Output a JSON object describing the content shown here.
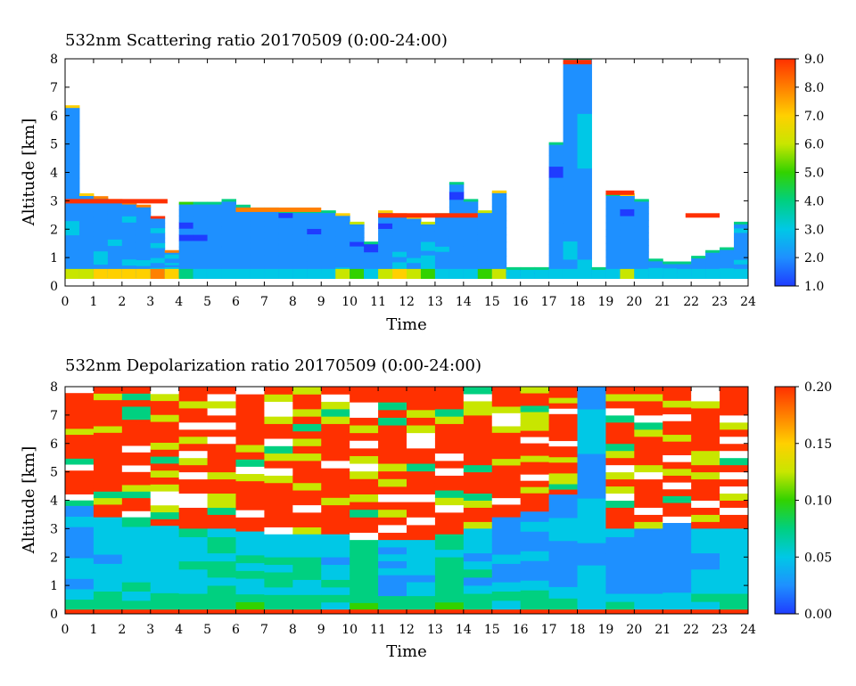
{
  "colorscale": [
    "#1f3cff",
    "#1e90ff",
    "#00c8e6",
    "#00d080",
    "#32d200",
    "#c8e600",
    "#ffd000",
    "#ff8000",
    "#ff3000"
  ],
  "chart_data": [
    {
      "type": "heatmap",
      "title": "532nm Scattering ratio  20170509 (0:00-24:00)",
      "xlabel": "Time",
      "ylabel": "Altitude [km]",
      "xlim": [
        0,
        24
      ],
      "ylim": [
        0,
        8
      ],
      "x_ticks": [
        "0",
        "1",
        "2",
        "3",
        "4",
        "5",
        "6",
        "7",
        "8",
        "9",
        "10",
        "11",
        "12",
        "13",
        "14",
        "15",
        "16",
        "17",
        "18",
        "19",
        "20",
        "21",
        "22",
        "23",
        "24"
      ],
      "y_ticks": [
        "0",
        "1",
        "2",
        "3",
        "4",
        "5",
        "6",
        "7",
        "8"
      ],
      "colorbar": {
        "min": 1.0,
        "max": 9.0,
        "ticks": [
          "1.0",
          "2.0",
          "3.0",
          "4.0",
          "5.0",
          "6.0",
          "7.0",
          "8.0",
          "9.0"
        ]
      },
      "columns": [
        {
          "t": 0.0,
          "top": 6.3,
          "value": 2.3,
          "base_value": 6.0
        },
        {
          "t": 0.5,
          "top": 3.2,
          "value": 2.2,
          "base_value": 5.5
        },
        {
          "t": 1.0,
          "top": 3.1,
          "value": 2.3,
          "base_value": 6.5
        },
        {
          "t": 1.5,
          "top": 3.0,
          "value": 2.3,
          "base_value": 6.8
        },
        {
          "t": 2.0,
          "top": 2.9,
          "value": 2.4,
          "base_value": 7.0
        },
        {
          "t": 2.5,
          "top": 2.8,
          "value": 2.4,
          "base_value": 7.2
        },
        {
          "t": 3.0,
          "top": 2.4,
          "value": 2.6,
          "base_value": 7.5
        },
        {
          "t": 3.5,
          "top": 1.2,
          "value": 2.5,
          "base_value": 7.2
        },
        {
          "t": 4.0,
          "top": 2.9,
          "value": 2.0,
          "base_value": 3.5
        },
        {
          "t": 4.5,
          "top": 2.9,
          "value": 2.0,
          "base_value": 3.0
        },
        {
          "t": 5.0,
          "top": 2.9,
          "value": 2.1,
          "base_value": 3.0
        },
        {
          "t": 5.5,
          "top": 3.0,
          "value": 2.0,
          "base_value": 3.0
        },
        {
          "t": 6.0,
          "top": 2.8,
          "value": 2.1,
          "base_value": 3.0
        },
        {
          "t": 6.5,
          "top": 2.7,
          "value": 2.2,
          "base_value": 3.0
        },
        {
          "t": 7.0,
          "top": 2.7,
          "value": 2.1,
          "base_value": 3.0
        },
        {
          "t": 7.5,
          "top": 2.6,
          "value": 2.1,
          "base_value": 3.0
        },
        {
          "t": 8.0,
          "top": 2.6,
          "value": 2.1,
          "base_value": 3.0
        },
        {
          "t": 8.5,
          "top": 2.6,
          "value": 2.1,
          "base_value": 3.0
        },
        {
          "t": 9.0,
          "top": 2.6,
          "value": 2.2,
          "base_value": 3.2
        },
        {
          "t": 9.5,
          "top": 2.5,
          "value": 2.2,
          "base_value": 5.5
        },
        {
          "t": 10.0,
          "top": 2.2,
          "value": 2.0,
          "base_value": 5.0
        },
        {
          "t": 10.5,
          "top": 1.5,
          "value": 1.9,
          "base_value": 3.0
        },
        {
          "t": 11.0,
          "top": 2.6,
          "value": 2.1,
          "base_value": 6.0
        },
        {
          "t": 11.5,
          "top": 2.5,
          "value": 2.5,
          "base_value": 6.5
        },
        {
          "t": 12.0,
          "top": 2.4,
          "value": 2.3,
          "base_value": 6.0
        },
        {
          "t": 12.5,
          "top": 2.2,
          "value": 2.6,
          "base_value": 5.0
        },
        {
          "t": 13.0,
          "top": 2.5,
          "value": 2.2,
          "base_value": 3.0
        },
        {
          "t": 13.5,
          "top": 3.6,
          "value": 2.0,
          "base_value": 3.0
        },
        {
          "t": 14.0,
          "top": 3.0,
          "value": 2.1,
          "base_value": 3.0
        },
        {
          "t": 14.5,
          "top": 2.6,
          "value": 2.2,
          "base_value": 5.0
        },
        {
          "t": 15.0,
          "top": 3.3,
          "value": 2.3,
          "base_value": 6.0
        },
        {
          "t": 15.5,
          "top": 0.6,
          "value": 2.0,
          "base_value": 3.0
        },
        {
          "t": 16.0,
          "top": 0.6,
          "value": 2.0,
          "base_value": 3.0
        },
        {
          "t": 16.5,
          "top": 0.6,
          "value": 2.0,
          "base_value": 3.0
        },
        {
          "t": 17.0,
          "top": 5.0,
          "value": 2.0,
          "base_value": 3.0
        },
        {
          "t": 17.5,
          "top": 8.0,
          "value": 2.2,
          "base_value": 3.0
        },
        {
          "t": 18.0,
          "top": 8.0,
          "value": 2.3,
          "base_value": 3.0
        },
        {
          "t": 18.5,
          "top": 0.6,
          "value": 2.0,
          "base_value": 3.0
        },
        {
          "t": 19.0,
          "top": 3.2,
          "value": 2.1,
          "base_value": 3.0
        },
        {
          "t": 19.5,
          "top": 3.2,
          "value": 2.1,
          "base_value": 6.0
        },
        {
          "t": 20.0,
          "top": 3.0,
          "value": 2.2,
          "base_value": 3.0
        },
        {
          "t": 20.5,
          "top": 0.9,
          "value": 2.4,
          "base_value": 3.0
        },
        {
          "t": 21.0,
          "top": 0.8,
          "value": 2.4,
          "base_value": 3.0
        },
        {
          "t": 21.5,
          "top": 0.8,
          "value": 2.4,
          "base_value": 3.0
        },
        {
          "t": 22.0,
          "top": 1.0,
          "value": 2.3,
          "base_value": 3.0
        },
        {
          "t": 22.5,
          "top": 1.2,
          "value": 2.2,
          "base_value": 3.0
        },
        {
          "t": 23.0,
          "top": 1.3,
          "value": 2.2,
          "base_value": 3.0
        },
        {
          "t": 23.5,
          "top": 2.2,
          "value": 2.5,
          "base_value": 3.0
        }
      ],
      "cloud_layers": [
        {
          "t0": 0.0,
          "t1": 3.6,
          "z": 3.0,
          "value": 8.5
        },
        {
          "t0": 6.0,
          "t1": 9.0,
          "z": 2.7,
          "value": 8.0
        },
        {
          "t0": 11.0,
          "t1": 14.5,
          "z": 2.5,
          "value": 8.5
        },
        {
          "t0": 17.5,
          "t1": 18.5,
          "z": 7.9,
          "value": 8.8
        },
        {
          "t0": 19.0,
          "t1": 20.0,
          "z": 3.3,
          "value": 8.5
        },
        {
          "t0": 21.8,
          "t1": 23.0,
          "z": 2.5,
          "value": 8.8
        }
      ]
    },
    {
      "type": "heatmap",
      "title": "532nm Depolarization ratio  20170509 (0:00-24:00)",
      "xlabel": "Time",
      "ylabel": "Altitude [km]",
      "xlim": [
        0,
        24
      ],
      "ylim": [
        0,
        8
      ],
      "x_ticks": [
        "0",
        "1",
        "2",
        "3",
        "4",
        "5",
        "6",
        "7",
        "8",
        "9",
        "10",
        "11",
        "12",
        "13",
        "14",
        "15",
        "16",
        "17",
        "18",
        "19",
        "20",
        "21",
        "22",
        "23",
        "24"
      ],
      "y_ticks": [
        "0",
        "1",
        "2",
        "3",
        "4",
        "5",
        "6",
        "7",
        "8"
      ],
      "colorbar": {
        "min": 0.0,
        "max": 0.2,
        "ticks": [
          "0.00",
          "0.05",
          "0.10",
          "0.15",
          "0.20"
        ]
      },
      "columns": [
        {
          "t": 0.0,
          "top": 3.8,
          "value": 0.03
        },
        {
          "t": 1.0,
          "top": 3.4,
          "value": 0.05
        },
        {
          "t": 2.0,
          "top": 3.4,
          "value": 0.05
        },
        {
          "t": 3.0,
          "top": 3.1,
          "value": 0.05
        },
        {
          "t": 4.0,
          "top": 3.0,
          "value": 0.06
        },
        {
          "t": 5.0,
          "top": 3.0,
          "value": 0.07
        },
        {
          "t": 6.0,
          "top": 2.9,
          "value": 0.07
        },
        {
          "t": 7.0,
          "top": 2.8,
          "value": 0.06
        },
        {
          "t": 8.0,
          "top": 2.8,
          "value": 0.06
        },
        {
          "t": 9.0,
          "top": 2.8,
          "value": 0.05
        },
        {
          "t": 10.0,
          "top": 2.6,
          "value": 0.07
        },
        {
          "t": 11.0,
          "top": 2.6,
          "value": 0.04
        },
        {
          "t": 12.0,
          "top": 2.6,
          "value": 0.05
        },
        {
          "t": 13.0,
          "top": 2.8,
          "value": 0.07
        },
        {
          "t": 14.0,
          "top": 3.0,
          "value": 0.05
        },
        {
          "t": 15.0,
          "top": 3.4,
          "value": 0.04
        },
        {
          "t": 16.0,
          "top": 3.6,
          "value": 0.035
        },
        {
          "t": 17.0,
          "top": 4.2,
          "value": 0.03
        },
        {
          "t": 18.0,
          "top": 8.0,
          "value": 0.035
        },
        {
          "t": 19.0,
          "top": 3.0,
          "value": 0.035
        },
        {
          "t": 20.0,
          "top": 3.0,
          "value": 0.03
        },
        {
          "t": 21.0,
          "top": 3.2,
          "value": 0.025
        },
        {
          "t": 22.0,
          "top": 3.0,
          "value": 0.05
        },
        {
          "t": 23.0,
          "top": 3.0,
          "value": 0.06
        }
      ],
      "upper_value": 0.19,
      "surface_value": 0.19
    }
  ]
}
